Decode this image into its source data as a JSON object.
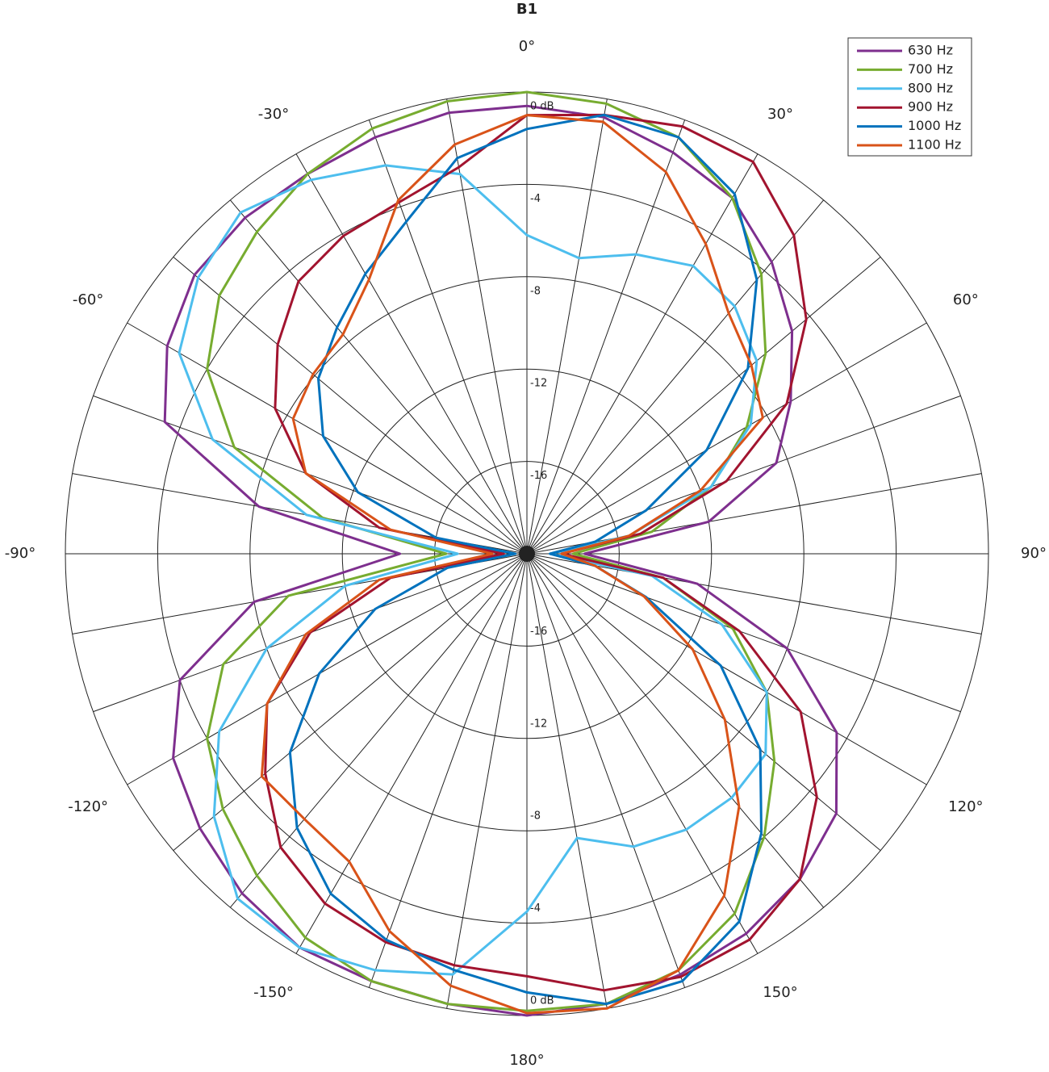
{
  "chart_data": {
    "type": "polar",
    "title": "B1",
    "theta": [
      -180,
      -170,
      -160,
      -150,
      -140,
      -130,
      -120,
      -110,
      -100,
      -90,
      -80,
      -70,
      -60,
      -50,
      -40,
      -30,
      -20,
      -10,
      0,
      10,
      20,
      30,
      40,
      50,
      60,
      70,
      80,
      90,
      100,
      110,
      120,
      130,
      140,
      150,
      160,
      170
    ],
    "rlim": [
      -20,
      0
    ],
    "rticks": [
      {
        "value": 0,
        "label": "0 dB"
      },
      -4,
      -8,
      -12,
      -16
    ],
    "thetaticks": [
      {
        "value": -150,
        "label": "-150°"
      },
      {
        "value": -120,
        "label": "-120°"
      },
      {
        "value": -90,
        "label": "-90°"
      },
      {
        "value": -60,
        "label": "-60°"
      },
      {
        "value": -30,
        "label": "-30°"
      },
      {
        "value": 0,
        "label": "0°"
      },
      {
        "value": 30,
        "label": "30°"
      },
      {
        "value": 60,
        "label": "60°"
      },
      {
        "value": 90,
        "label": "90°"
      },
      {
        "value": 120,
        "label": "120°"
      },
      {
        "value": 150,
        "label": "150°"
      },
      {
        "value": 180,
        "label": "180°"
      }
    ],
    "thetagrid": [
      -180,
      -170,
      -160,
      -150,
      -140,
      -130,
      -120,
      -110,
      -100,
      -90,
      -80,
      -70,
      -60,
      -50,
      -40,
      -30,
      -20,
      -10,
      0,
      10,
      20,
      30,
      40,
      50,
      60,
      70,
      80,
      90,
      100,
      110,
      120,
      130,
      140,
      150,
      160,
      170
    ],
    "theta_zero": "top",
    "theta_direction": "clockwise",
    "grid": true,
    "legend": "upper right",
    "series": [
      {
        "name": "630 Hz",
        "color": "#7e2f8e",
        "values": [
          0,
          -0.2,
          -0.3,
          -0.3,
          -0.8,
          -1.5,
          -2.3,
          -4,
          -8,
          -14.5,
          -8.2,
          -3.3,
          -2,
          -1.2,
          -1,
          -1,
          -0.8,
          -0.6,
          -0.6,
          -0.8,
          -1.5,
          -2.2,
          -3.5,
          -5,
          -6.8,
          -8.5,
          -12,
          -17.5,
          -12.5,
          -8,
          -4.5,
          -2.5,
          -1.6,
          -1,
          -0.6,
          -0.2
        ]
      },
      {
        "name": "700 Hz",
        "color": "#77ac30",
        "values": [
          -0.2,
          -0.2,
          -0.3,
          -0.8,
          -1.8,
          -2.8,
          -4,
          -6,
          -9.5,
          -16.5,
          -11,
          -6.5,
          -4,
          -2.6,
          -1.8,
          -1,
          -0.4,
          -0.1,
          0,
          -0.2,
          -0.8,
          -2.2,
          -4.2,
          -6.5,
          -9,
          -11.5,
          -14.5,
          -18,
          -14,
          -10.5,
          -8,
          -6,
          -4,
          -2,
          -0.8,
          -0.2
        ]
      },
      {
        "name": "800 Hz",
        "color": "#4dbeee",
        "values": [
          -4.5,
          -1.5,
          -0.8,
          -0.3,
          -0.5,
          -2.3,
          -4.6,
          -8,
          -12,
          -17,
          -10.3,
          -5.5,
          -2.6,
          -1.4,
          -0.7,
          -1.3,
          -2.1,
          -3.3,
          -6.2,
          -7,
          -6.2,
          -5.6,
          -6,
          -7,
          -8.8,
          -11.5,
          -15.5,
          -19,
          -14.5,
          -11,
          -8,
          -6.5,
          -6.2,
          -6.2,
          -6.5,
          -7.5
        ]
      },
      {
        "name": "900 Hz",
        "color": "#a2142f",
        "values": [
          -1.7,
          -1.9,
          -2.1,
          -2.5,
          -3.4,
          -5.2,
          -7,
          -10,
          -14,
          -19,
          -13.5,
          -9.8,
          -7.4,
          -5.9,
          -4.6,
          -4.1,
          -3.8,
          -3,
          -1,
          -0.7,
          -0.3,
          -0.4,
          -2,
          -4.2,
          -7,
          -10.8,
          -15,
          -18.5,
          -14,
          -10.2,
          -6.3,
          -3.6,
          -1.6,
          -0.7,
          -0.5,
          -0.8
        ]
      },
      {
        "name": "1000 Hz",
        "color": "#0072bd",
        "values": [
          -1,
          -1.7,
          -2.2,
          -3,
          -4.5,
          -6.6,
          -9.6,
          -13,
          -16.5,
          -19.5,
          -16,
          -12.2,
          -9.8,
          -8.2,
          -7.2,
          -6,
          -4.7,
          -2.6,
          -1.6,
          -0.7,
          -0.8,
          -2,
          -4.5,
          -7.5,
          -11,
          -14.5,
          -17,
          -19,
          -17,
          -14.5,
          -10.3,
          -6.8,
          -4.2,
          -1.6,
          -0.3,
          -0.2
        ]
      },
      {
        "name": "1100 Hz",
        "color": "#d95319",
        "values": [
          -0.1,
          -1,
          -2.6,
          -4.6,
          -5,
          -5,
          -7,
          -9.8,
          -13.5,
          -18.5,
          -14,
          -9.8,
          -8.3,
          -7.9,
          -7.6,
          -6.3,
          -3.7,
          -2,
          -1,
          -1,
          -2.4,
          -4.5,
          -6.4,
          -7.3,
          -8.2,
          -12,
          -15.5,
          -18.5,
          -17,
          -14.6,
          -11.7,
          -8.8,
          -5.7,
          -2.9,
          -0.8,
          0
        ]
      }
    ]
  }
}
